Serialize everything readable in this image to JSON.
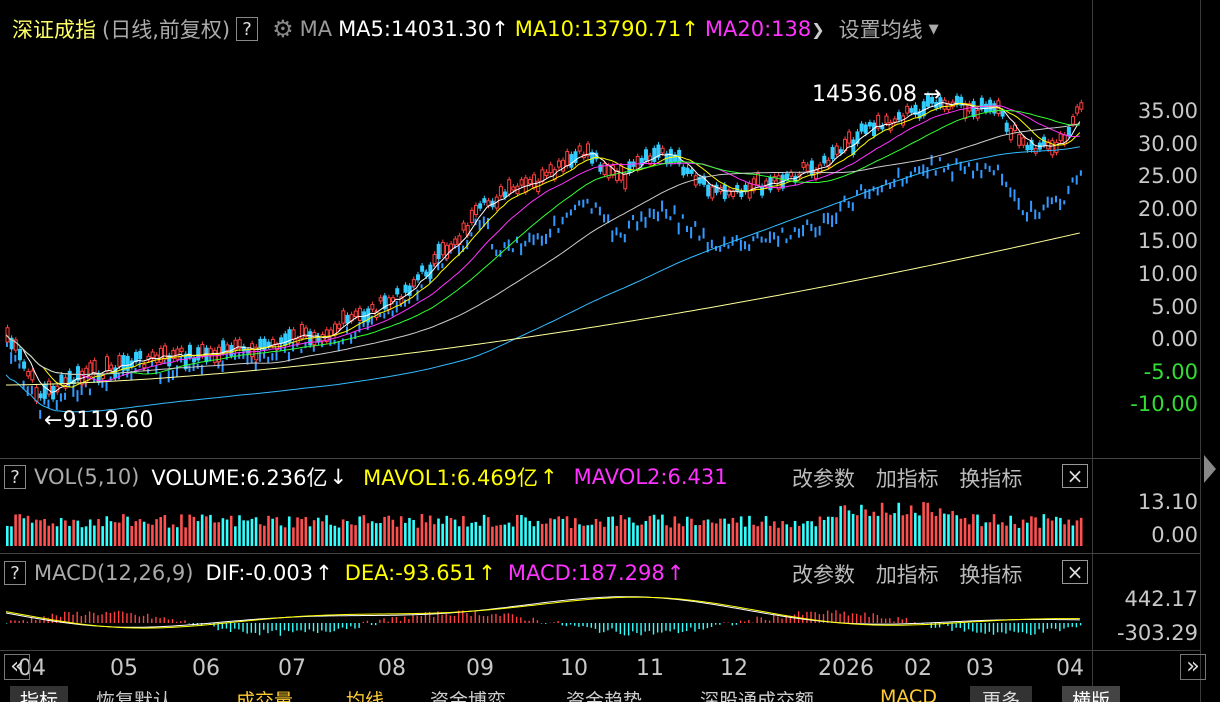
{
  "header": {
    "index_name": "深证成指",
    "mode": "(日线,前复权)",
    "help": "?",
    "ma_label": "MA",
    "ma5": "MA5:14031.30",
    "ma10": "MA10:13790.71",
    "ma20": "MA20:138",
    "up_arrow": "↑",
    "set_ma": "设置均线",
    "color_ma5": "#ffffff",
    "color_ma10": "#ffff00",
    "color_ma20": "#ff33ff"
  },
  "main_chart": {
    "high_label": "14536.08",
    "low_label": "9119.60",
    "y_axis": [
      "35.00",
      "30.00",
      "25.00",
      "20.00",
      "15.00",
      "10.00",
      "5.00",
      "0.00",
      "-5.00",
      "-10.00"
    ]
  },
  "volume_panel": {
    "help": "?",
    "title": "VOL(5,10)",
    "volume": "VOLUME:6.236亿",
    "down_arrow": "↓",
    "mavol1": "MAVOL1:6.469亿",
    "mavol2": "MAVOL2:6.431",
    "up_arrow": "↑",
    "change_params": "改参数",
    "add_indicator": "加指标",
    "swap_indicator": "换指标",
    "close": "×",
    "y_axis": [
      "13.10",
      "0.00"
    ]
  },
  "macd_panel": {
    "help": "?",
    "title": "MACD(12,26,9)",
    "dif": "DIF:-0.003",
    "dea": "DEA:-93.651",
    "macd": "MACD:187.298",
    "up_arrow": "↑",
    "change_params": "改参数",
    "add_indicator": "加指标",
    "swap_indicator": "换指标",
    "close": "×",
    "y_axis": [
      "442.17",
      "-303.29"
    ]
  },
  "x_axis": {
    "labels": [
      "04",
      "05",
      "06",
      "07",
      "08",
      "09",
      "10",
      "11",
      "12",
      "2026",
      "02",
      "03",
      "04"
    ],
    "left_nav": "«",
    "right_nav": "»"
  },
  "bottom_tabs": [
    "指标",
    "恢复默认",
    "成交量",
    "均线",
    "资金博弈",
    "资金趋势",
    "深股通成交额",
    "MACD",
    "更多",
    "横版"
  ]
}
